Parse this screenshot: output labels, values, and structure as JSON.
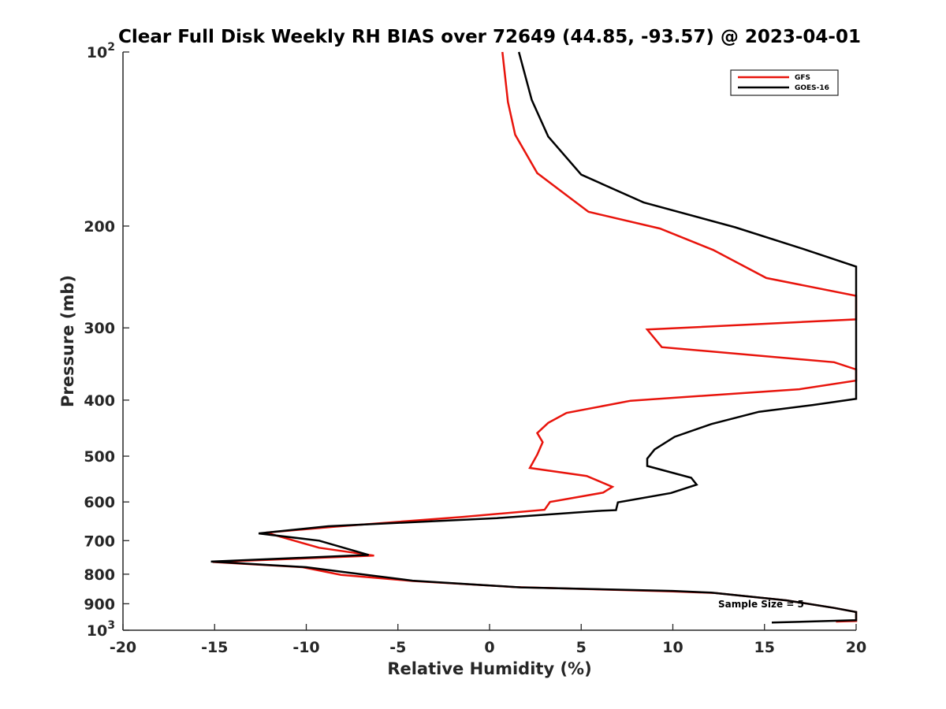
{
  "chart_data": {
    "type": "line",
    "title": "Clear Full Disk Weekly RH BIAS over 72649 (44.85, -93.57) @ 2023-04-01",
    "xlabel": "Relative Humidity (%)",
    "ylabel": "Pressure (mb)",
    "xlim": [
      -20,
      20
    ],
    "ylim": [
      100,
      1000
    ],
    "y_scale": "log",
    "y_reversed": true,
    "grid": false,
    "legend_position": "top-right",
    "x_ticks": [
      {
        "value": -20,
        "label": "-20"
      },
      {
        "value": -15,
        "label": "-15"
      },
      {
        "value": -10,
        "label": "-10"
      },
      {
        "value": -5,
        "label": "-5"
      },
      {
        "value": 0,
        "label": "0"
      },
      {
        "value": 5,
        "label": "5"
      },
      {
        "value": 10,
        "label": "10"
      },
      {
        "value": 15,
        "label": "15"
      },
      {
        "value": 20,
        "label": "20"
      }
    ],
    "y_ticks": [
      {
        "value": 100,
        "base": "10",
        "exp": "2"
      },
      {
        "value": 200,
        "base": "200",
        "exp": ""
      },
      {
        "value": 300,
        "base": "300",
        "exp": ""
      },
      {
        "value": 400,
        "base": "400",
        "exp": ""
      },
      {
        "value": 500,
        "base": "500",
        "exp": ""
      },
      {
        "value": 600,
        "base": "600",
        "exp": ""
      },
      {
        "value": 700,
        "base": "700",
        "exp": ""
      },
      {
        "value": 800,
        "base": "800",
        "exp": ""
      },
      {
        "value": 900,
        "base": "900",
        "exp": ""
      },
      {
        "value": 1000,
        "base": "10",
        "exp": "3"
      }
    ],
    "series": [
      {
        "name": "GFS",
        "color": "#e8140c",
        "points": [
          [
            0.7,
            100
          ],
          [
            1.0,
            122
          ],
          [
            1.4,
            139
          ],
          [
            2.6,
            162
          ],
          [
            5.4,
            189
          ],
          [
            9.3,
            202
          ],
          [
            12.2,
            220
          ],
          [
            15.1,
            246
          ],
          [
            20,
            264
          ],
          [
            20,
            290
          ],
          [
            8.6,
            302
          ],
          [
            9.4,
            324
          ],
          [
            18.8,
            344
          ],
          [
            20,
            354
          ],
          [
            20,
            370
          ],
          [
            16.9,
            383
          ],
          [
            7.7,
            401
          ],
          [
            4.2,
            421
          ],
          [
            3.2,
            438
          ],
          [
            2.6,
            456
          ],
          [
            2.9,
            473
          ],
          [
            2.6,
            497
          ],
          [
            2.2,
            524
          ],
          [
            5.3,
            541
          ],
          [
            6.7,
            565
          ],
          [
            6.2,
            578
          ],
          [
            3.3,
            600
          ],
          [
            3.0,
            619
          ],
          [
            -1.5,
            637
          ],
          [
            -8.4,
            662
          ],
          [
            -12.2,
            678
          ],
          [
            -9.3,
            720
          ],
          [
            -6.3,
            743
          ],
          [
            -15.1,
            762
          ],
          [
            -10.2,
            778
          ],
          [
            -8.1,
            802
          ],
          [
            -4.2,
            822
          ],
          [
            1.4,
            842
          ],
          [
            10.0,
            857
          ],
          [
            12.3,
            862
          ],
          [
            16.2,
            888
          ],
          [
            18.8,
            915
          ],
          [
            20,
            930
          ],
          [
            20,
            964
          ],
          [
            18.9,
            966
          ]
        ]
      },
      {
        "name": "GOES-16",
        "color": "#000000",
        "points": [
          [
            1.6,
            100
          ],
          [
            2.3,
            121
          ],
          [
            3.2,
            140
          ],
          [
            5.0,
            163
          ],
          [
            8.4,
            182
          ],
          [
            13.4,
            201
          ],
          [
            16.9,
            218
          ],
          [
            20,
            235
          ],
          [
            20,
            398
          ],
          [
            17.6,
            408
          ],
          [
            14.7,
            419
          ],
          [
            12.1,
            440
          ],
          [
            10.1,
            463
          ],
          [
            9.0,
            487
          ],
          [
            8.6,
            505
          ],
          [
            8.6,
            520
          ],
          [
            11.0,
            545
          ],
          [
            11.3,
            560
          ],
          [
            9.9,
            579
          ],
          [
            7.0,
            601
          ],
          [
            6.9,
            620
          ],
          [
            5.9,
            622
          ],
          [
            0.4,
            640
          ],
          [
            -8.8,
            661
          ],
          [
            -12.6,
            680
          ],
          [
            -9.3,
            700
          ],
          [
            -6.6,
            741
          ],
          [
            -15.2,
            761
          ],
          [
            -10.0,
            778
          ],
          [
            -7.7,
            795
          ],
          [
            -4.2,
            821
          ],
          [
            1.7,
            843
          ],
          [
            10.0,
            855
          ],
          [
            12.1,
            861
          ],
          [
            16.2,
            888
          ],
          [
            18.8,
            915
          ],
          [
            20,
            930
          ],
          [
            20,
            961
          ],
          [
            15.4,
            970
          ]
        ]
      }
    ],
    "annotations": [
      {
        "text": "Sample Size = 5",
        "x": 16.7,
        "y": 893
      }
    ]
  }
}
